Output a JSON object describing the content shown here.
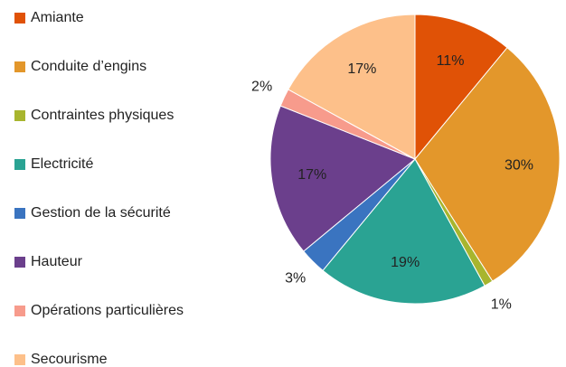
{
  "chart_data": {
    "type": "pie",
    "categories": [
      "Amiante",
      "Conduite d’engins",
      "Contraintes physiques",
      "Electricité",
      "Gestion de la sécurité",
      "Hauteur",
      "Opérations particulières",
      "Secourisme"
    ],
    "values": [
      11,
      30,
      1,
      19,
      3,
      17,
      2,
      17
    ],
    "value_labels": [
      "11%",
      "30%",
      "1%",
      "19%",
      "3%",
      "17%",
      "2%",
      "17%"
    ],
    "colors": [
      "#e05206",
      "#e3972b",
      "#a8b52e",
      "#2aa393",
      "#3a74c0",
      "#6b3f8c",
      "#f79b8c",
      "#fdc08a"
    ],
    "legend": "left"
  }
}
